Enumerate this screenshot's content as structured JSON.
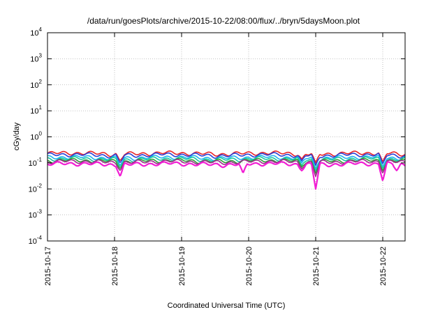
{
  "chart_data": {
    "type": "line",
    "title": "/data/run/goesPlots/archive/2015-10-22/08:00/flux/../bryn/5daysMoon.plot",
    "xlabel": "Coordinated Universal Time (UTC)",
    "ylabel": "cGy/day",
    "y_scale": "log",
    "ylim": [
      0.0001,
      10000
    ],
    "xlim": [
      "2015-10-17 00:00",
      "2015-10-22 08:00"
    ],
    "grid": true,
    "y_ticks": [
      {
        "base": "10",
        "exp": "-4"
      },
      {
        "base": "10",
        "exp": "-3"
      },
      {
        "base": "10",
        "exp": "-2"
      },
      {
        "base": "10",
        "exp": "-1"
      },
      {
        "base": "10",
        "exp": "0"
      },
      {
        "base": "10",
        "exp": "1"
      },
      {
        "base": "10",
        "exp": "2"
      },
      {
        "base": "10",
        "exp": "3"
      },
      {
        "base": "10",
        "exp": "4"
      }
    ],
    "x_ticks": [
      "2015-10-17",
      "2015-10-18",
      "2015-10-19",
      "2015-10-20",
      "2015-10-21",
      "2015-10-22"
    ],
    "series": [
      {
        "color": "#e8242a",
        "level": 0.23,
        "dips": [
          {
            "x": "2015-10-18 02:00",
            "y": 0.12
          },
          {
            "x": "2015-10-20 19:00",
            "y": 0.14
          },
          {
            "x": "2015-10-21 00:00",
            "y": 0.1
          },
          {
            "x": "2015-10-22 00:00",
            "y": 0.11
          }
        ]
      },
      {
        "color": "#2b3fd6",
        "level": 0.2,
        "dips": [
          {
            "x": "2015-10-18 02:00",
            "y": 0.1
          },
          {
            "x": "2015-10-20 19:00",
            "y": 0.12
          },
          {
            "x": "2015-10-21 00:00",
            "y": 0.08
          },
          {
            "x": "2015-10-22 00:00",
            "y": 0.09
          }
        ]
      },
      {
        "color": "#22b5f0",
        "level": 0.16,
        "dips": [
          {
            "x": "2015-10-18 02:00",
            "y": 0.08
          },
          {
            "x": "2015-10-20 19:00",
            "y": 0.1
          },
          {
            "x": "2015-10-21 00:00",
            "y": 0.06
          },
          {
            "x": "2015-10-22 00:00",
            "y": 0.07
          }
        ]
      },
      {
        "color": "#19c9a0",
        "level": 0.14,
        "dips": [
          {
            "x": "2015-10-18 02:00",
            "y": 0.07
          },
          {
            "x": "2015-10-20 19:00",
            "y": 0.08
          },
          {
            "x": "2015-10-21 00:00",
            "y": 0.05
          },
          {
            "x": "2015-10-22 00:00",
            "y": 0.06
          }
        ]
      },
      {
        "color": "#2f9e3a",
        "level": 0.12,
        "dips": [
          {
            "x": "2015-10-18 02:00",
            "y": 0.06
          },
          {
            "x": "2015-10-20 19:00",
            "y": 0.07
          },
          {
            "x": "2015-10-21 00:00",
            "y": 0.04
          },
          {
            "x": "2015-10-22 00:00",
            "y": 0.05
          }
        ]
      },
      {
        "color": "#9b2f8a",
        "level": 0.11,
        "dips": [
          {
            "x": "2015-10-18 02:00",
            "y": 0.05
          },
          {
            "x": "2015-10-20 19:00",
            "y": 0.06
          },
          {
            "x": "2015-10-21 00:00",
            "y": 0.03
          },
          {
            "x": "2015-10-22 00:00",
            "y": 0.04
          }
        ]
      },
      {
        "color": "#f21dd4",
        "level": 0.09,
        "dips": [
          {
            "x": "2015-10-18 02:00",
            "y": 0.03
          },
          {
            "x": "2015-10-19 22:00",
            "y": 0.04
          },
          {
            "x": "2015-10-20 19:00",
            "y": 0.05
          },
          {
            "x": "2015-10-21 00:00",
            "y": 0.01
          },
          {
            "x": "2015-10-22 00:00",
            "y": 0.02
          },
          {
            "x": "2015-10-22 05:00",
            "y": 0.05
          }
        ]
      }
    ]
  }
}
